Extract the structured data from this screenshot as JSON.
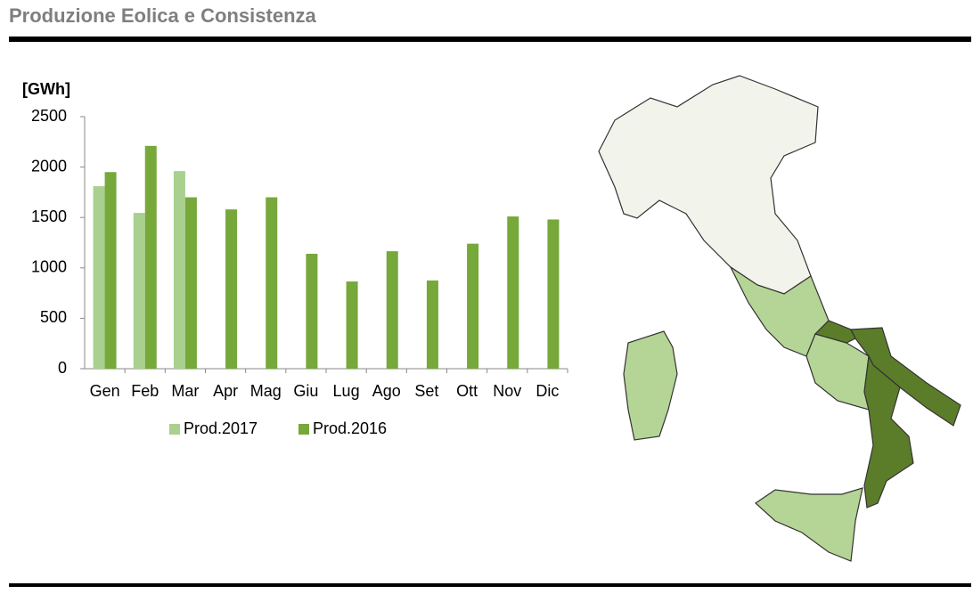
{
  "header": {
    "title": "Produzione Eolica e Consistenza"
  },
  "chart_data": {
    "type": "bar",
    "y_label": "[GWh]",
    "categories": [
      "Gen",
      "Feb",
      "Mar",
      "Apr",
      "Mag",
      "Giu",
      "Lug",
      "Ago",
      "Set",
      "Ott",
      "Nov",
      "Dic"
    ],
    "series": [
      {
        "name": "Prod.2017",
        "color": "#a9d08e",
        "values": [
          1810,
          1545,
          1960,
          null,
          null,
          null,
          null,
          null,
          null,
          null,
          null,
          null
        ]
      },
      {
        "name": "Prod.2016",
        "color": "#76a83a",
        "values": [
          1950,
          2210,
          1700,
          1580,
          1700,
          1140,
          865,
          1165,
          875,
          1240,
          1510,
          1480
        ]
      }
    ],
    "ylim": [
      0,
      2500
    ],
    "yticks": [
      0,
      500,
      1000,
      1500,
      2000,
      2500
    ],
    "grid": false,
    "legend": "bottom"
  }
}
